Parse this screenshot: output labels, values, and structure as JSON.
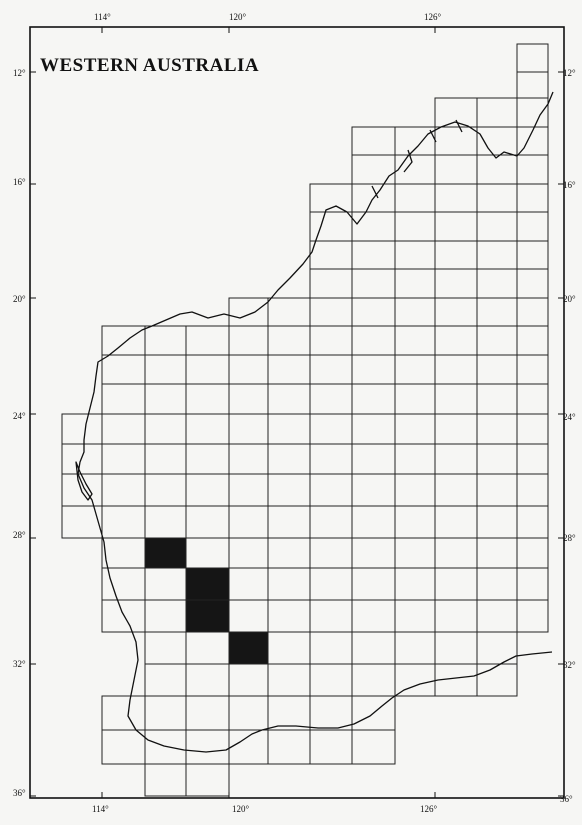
{
  "title": "WESTERN AUSTRALIA",
  "top_longitude_labels": [
    "114°",
    "120°",
    "126°"
  ],
  "bottom_longitude_labels": [
    "114°",
    "120°",
    "126°"
  ],
  "left_latitude_labels": [
    "12°",
    "16°",
    "20°",
    "24°",
    "28°",
    "32°",
    "36°"
  ],
  "right_latitude_labels": [
    "12°",
    "16°",
    "20°",
    "24°",
    "28°",
    "32°",
    "36°"
  ],
  "shaded_cell_count": 4,
  "colors": {
    "grid": "#222222",
    "shaded": "#151515",
    "background": "#f6f6f4"
  }
}
